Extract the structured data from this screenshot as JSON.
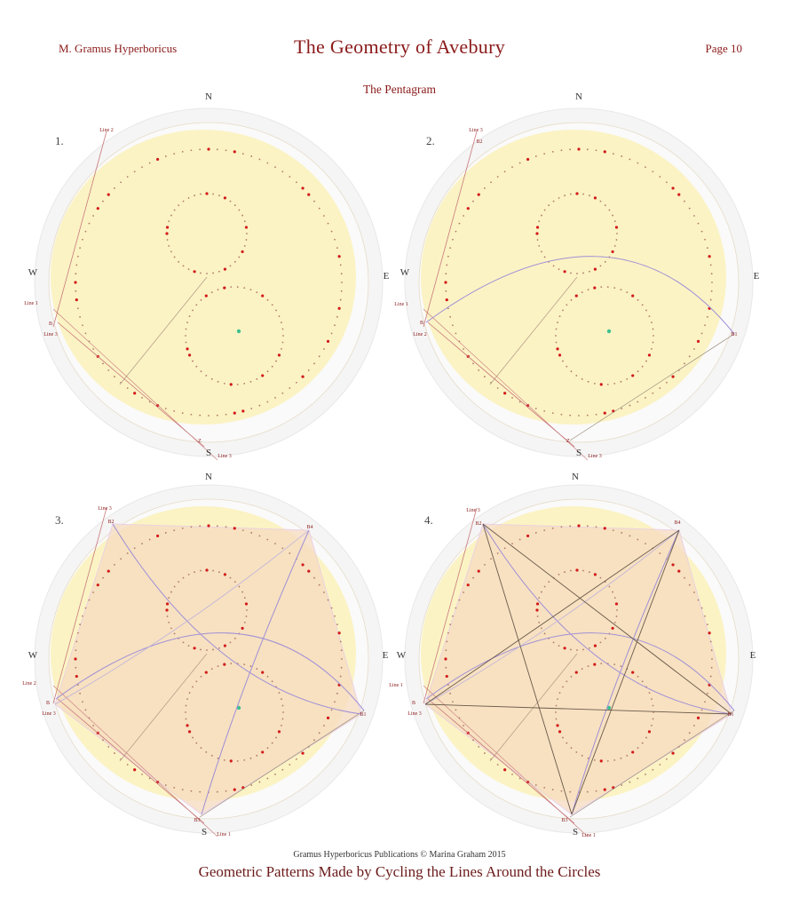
{
  "header": {
    "author": "M. Gramus Hyperboricus",
    "title": "The Geometry of Avebury",
    "page": "Page 10",
    "subtitle": "The Pentagram"
  },
  "diagrams": [
    {
      "number": "1.",
      "compass": {
        "n": "N",
        "s": "S",
        "e": "E",
        "w": "W"
      },
      "labels": [
        "Line 2",
        "Line 1",
        "B",
        "Line 3",
        "Z",
        "Line 3"
      ]
    },
    {
      "number": "2.",
      "compass": {
        "n": "N",
        "s": "S",
        "e": "E",
        "w": "W"
      },
      "labels": [
        "Line 3",
        "B2",
        "Line 1",
        "B",
        "Line 2",
        "B1",
        "Z",
        "Line 3"
      ]
    },
    {
      "number": "3.",
      "compass": {
        "n": "N",
        "s": "S",
        "e": "E",
        "w": "W"
      },
      "labels": [
        "Line 3",
        "B2",
        "B4",
        "Line 2",
        "B",
        "Line 3",
        "B1",
        "B3",
        "Line 1"
      ]
    },
    {
      "number": "4.",
      "compass": {
        "n": "N",
        "s": "S",
        "e": "E",
        "w": "W"
      },
      "labels": [
        "Line 3",
        "B2",
        "B4",
        "Line 1",
        "B",
        "Line 3",
        "B1",
        "B3",
        "Line 1"
      ]
    }
  ],
  "footer": {
    "publisher": "Gramus Hyperboricus Publications © Marina Graham 2015",
    "caption": "Geometric Patterns Made by Cycling the Lines Around the Circles"
  },
  "colors": {
    "accent": "#8b1a1a",
    "field": "#fbf3c4",
    "pentagon_fill": "#f6dcc0",
    "arc": "#a08fd6",
    "stone_red": "#d21a1a",
    "stone_green": "#3fbf8f"
  }
}
